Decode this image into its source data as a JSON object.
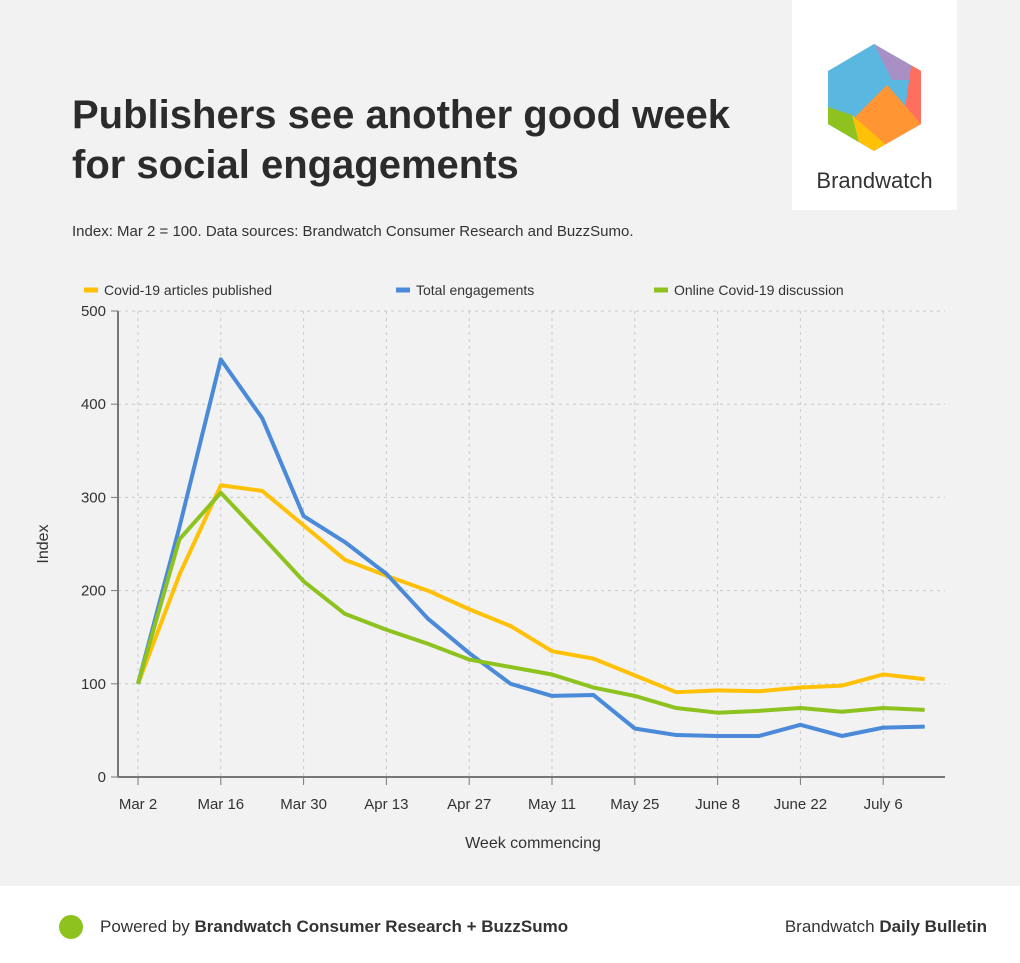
{
  "title": "Publishers see another good week for social engagements",
  "subtitle": "Index: Mar 2 = 100. Data sources: Brandwatch Consumer Research and BuzzSumo.",
  "logo": {
    "text": "Brandwatch"
  },
  "footer": {
    "powered_prefix": "Powered by ",
    "powered_bold": "Brandwatch Consumer Research + BuzzSumo",
    "right_prefix": "Brandwatch ",
    "right_bold": "Daily Bulletin",
    "dot_color": "#8dc21f"
  },
  "chart_data": {
    "type": "line",
    "xlabel": "Week commencing",
    "ylabel": "Index",
    "ylim": [
      0,
      500
    ],
    "yticks": [
      0,
      100,
      200,
      300,
      400,
      500
    ],
    "x": [
      "Mar 2",
      "Mar 9",
      "Mar 16",
      "Mar 23",
      "Mar 30",
      "Apr 6",
      "Apr 13",
      "Apr 20",
      "Apr 27",
      "May 4",
      "May 11",
      "May 18",
      "May 25",
      "June 1",
      "June 8",
      "June 15",
      "June 22",
      "June 29",
      "July 6",
      "July 13"
    ],
    "xticks": [
      "Mar 2",
      "Mar 16",
      "Mar 30",
      "Apr 13",
      "Apr 27",
      "May 11",
      "May 25",
      "June 8",
      "June 22",
      "July 6"
    ],
    "grid": true,
    "legend": "top",
    "series": [
      {
        "name": "Covid-19 articles published",
        "color": "#ffc107",
        "values": [
          100,
          217,
          313,
          307,
          270,
          233,
          216,
          200,
          180,
          162,
          135,
          127,
          109,
          91,
          93,
          92,
          96,
          98,
          110,
          105
        ]
      },
      {
        "name": "Total engagements",
        "color": "#4a8ad9",
        "values": [
          100,
          268,
          448,
          385,
          280,
          252,
          218,
          170,
          133,
          100,
          87,
          88,
          52,
          45,
          44,
          44,
          56,
          44,
          53,
          54
        ]
      },
      {
        "name": "Online Covid-19 discussion",
        "color": "#8dc21f",
        "values": [
          100,
          255,
          305,
          258,
          210,
          175,
          158,
          143,
          126,
          118,
          110,
          96,
          87,
          74,
          69,
          71,
          74,
          70,
          74,
          72
        ]
      }
    ]
  }
}
